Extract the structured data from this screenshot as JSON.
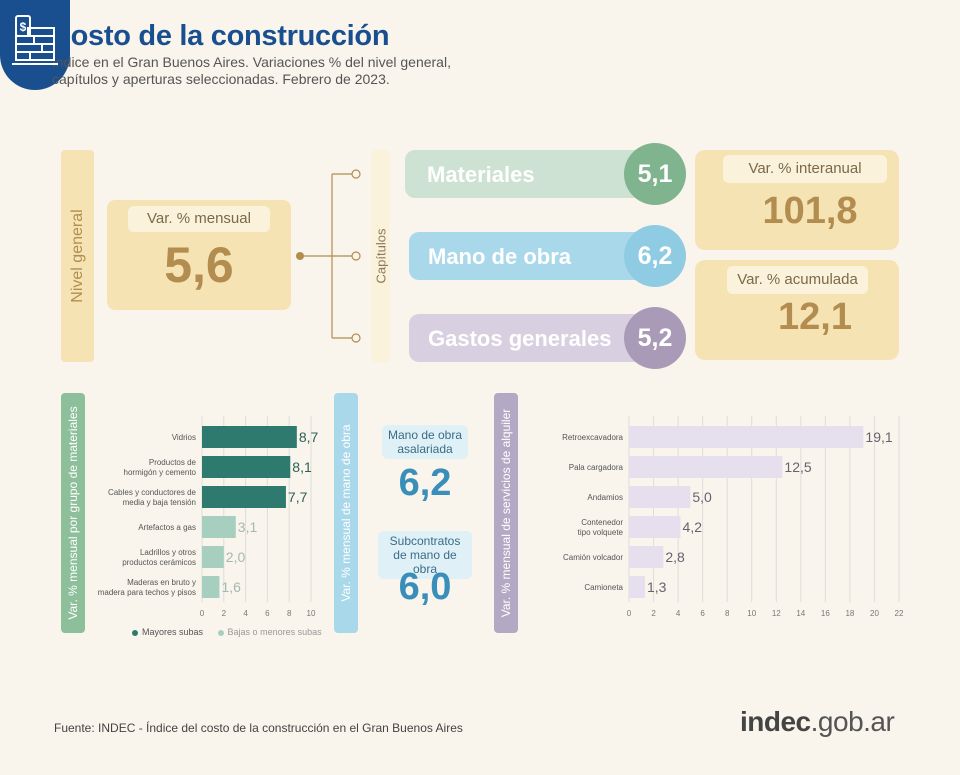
{
  "header": {
    "title": "Costo de la construcción",
    "subtitle": "Índice en el Gran Buenos Aires. Variaciones % del nivel general, capítulos y aperturas seleccionadas. Febrero de 2023."
  },
  "nivel_general": {
    "label": "Nivel general",
    "metric": "Var. % mensual",
    "value": "5,6"
  },
  "capitulos": {
    "label": "Capítulos",
    "items": [
      {
        "name": "Materiales",
        "value": "5,1",
        "bar_color": "#cde2d2",
        "circle_color": "#7fb48e"
      },
      {
        "name": "Mano de obra",
        "value": "6,2",
        "bar_color": "#a9d8ea",
        "circle_color": "#8fcbe2"
      },
      {
        "name": "Gastos generales",
        "value": "5,2",
        "bar_color": "#d8d0e0",
        "circle_color": "#a99bb8"
      }
    ]
  },
  "interanual": {
    "label": "Var. % interanual",
    "value": "101,8"
  },
  "acumulada": {
    "label": "Var. % acumulada",
    "value": "12,1"
  },
  "materiales_panel": {
    "label": "Var. % mensual por grupo de materiales",
    "legend_major": "Mayores subas",
    "legend_minor": "Bajas o menores subas"
  },
  "mano_obra_panel": {
    "label": "Var. % mensual de mano de obra",
    "asalariada_label": "Mano de obra asalariada",
    "asalariada_value": "6,2",
    "subcontratos_label": "Subcontratos de mano de obra",
    "subcontratos_value": "6,0"
  },
  "alquiler_panel": {
    "label": "Var. % mensual de servicios de alquiler"
  },
  "colors": {
    "dark_green": "#2f7a6e",
    "light_green": "#a7cfc0",
    "lavender": "#e6e0ee",
    "brand_blue": "#1a4f8f"
  },
  "chart_data": [
    {
      "type": "bar",
      "orientation": "horizontal",
      "categories": [
        "Vidrios",
        "Productos de hormigón y cemento",
        "Cables y conductores de media y baja tensión",
        "Artefactos a gas",
        "Ladrillos y otros productos cerámicos",
        "Maderas en bruto y madera para techos y pisos"
      ],
      "category_lines": [
        [
          "Vidrios"
        ],
        [
          "Productos de",
          "hormigón y cemento"
        ],
        [
          "Cables y conductores de",
          "media y baja tensión"
        ],
        [
          "Artefactos a gas"
        ],
        [
          "Ladrillos y otros",
          "productos cerámicos"
        ],
        [
          "Maderas en bruto y",
          "madera para techos y pisos"
        ]
      ],
      "values": [
        8.7,
        8.1,
        7.7,
        3.1,
        2.0,
        1.6
      ],
      "labels": [
        "8,7",
        "8,1",
        "7,7",
        "3,1",
        "2,0",
        "1,6"
      ],
      "group": [
        "major",
        "major",
        "major",
        "minor",
        "minor",
        "minor"
      ],
      "xlim": [
        0,
        10
      ],
      "xticks": [
        0,
        2,
        4,
        6,
        8,
        10
      ]
    },
    {
      "type": "bar",
      "orientation": "horizontal",
      "categories": [
        "Retroexcavadora",
        "Pala cargadora",
        "Andamios",
        "Contenedor tipo volquete",
        "Camión volcador",
        "Camioneta"
      ],
      "category_lines": [
        [
          "Retroexcavadora"
        ],
        [
          "Pala cargadora"
        ],
        [
          "Andamios"
        ],
        [
          "Contenedor",
          "tipo volquete"
        ],
        [
          "Camión volcador"
        ],
        [
          "Camioneta"
        ]
      ],
      "values": [
        19.1,
        12.5,
        5.0,
        4.2,
        2.8,
        1.3
      ],
      "labels": [
        "19,1",
        "12,5",
        "5,0",
        "4,2",
        "2,8",
        "1,3"
      ],
      "xlim": [
        0,
        22
      ],
      "xticks": [
        0,
        2,
        4,
        6,
        8,
        10,
        12,
        14,
        16,
        18,
        20,
        22
      ]
    }
  ],
  "footer": {
    "source": "Fuente: INDEC - Índice del costo de la construcción en el Gran Buenos Aires",
    "logo_main": "indec",
    "logo_suffix": ".gob.ar"
  }
}
